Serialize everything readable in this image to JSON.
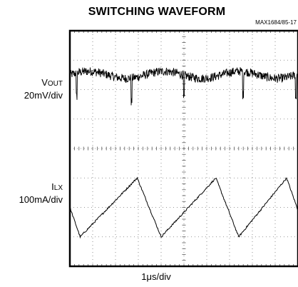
{
  "chart_data": {
    "type": "line",
    "title": "SWITCHING WAVEFORM",
    "figure_id": "MAX1684/85-17",
    "xlabel": "1μs/div",
    "x_divisions": 10,
    "y_divisions": 8,
    "grid": true,
    "series": [
      {
        "label_main": "V",
        "label_sub": "OUT",
        "scale": "20mV/div",
        "noise_amplitude_div": 0.15,
        "spike_times_div": [
          0.3,
          2.7,
          5.0,
          7.6,
          9.9
        ],
        "spike_depth_div": 0.8,
        "baseline_div": 2.5
      },
      {
        "label_main": "I",
        "label_sub": "LX",
        "scale": "100mA/div",
        "points_div": [
          [
            0.0,
            -2.0
          ],
          [
            0.45,
            -3.0
          ],
          [
            2.95,
            -1.0
          ],
          [
            4.0,
            -3.0
          ],
          [
            6.4,
            -1.0
          ],
          [
            7.4,
            -3.0
          ],
          [
            9.5,
            -1.0
          ],
          [
            10.0,
            -2.1
          ]
        ]
      }
    ]
  }
}
